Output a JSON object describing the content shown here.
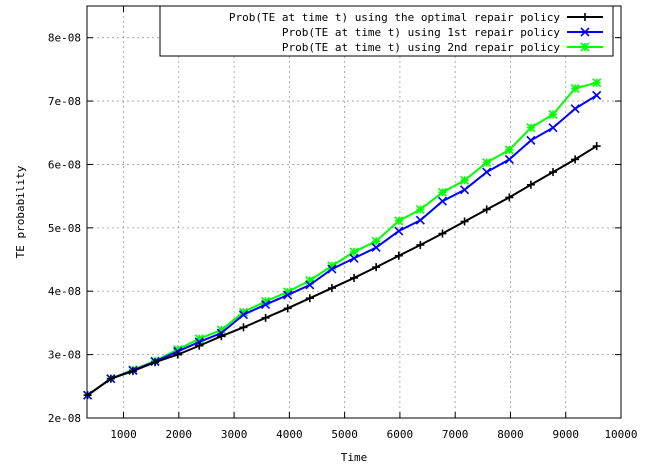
{
  "chart_data": {
    "type": "line",
    "title": "",
    "xlabel": "Time",
    "ylabel": "TE probability",
    "xlim": [
      339,
      10000
    ],
    "ylim": [
      2e-08,
      8.5e-08
    ],
    "grid": true,
    "legend_position": "top-right",
    "x_ticks": [
      1000,
      2000,
      3000,
      4000,
      5000,
      6000,
      7000,
      8000,
      9000,
      10000
    ],
    "x_tick_labels": [
      "1000",
      "2000",
      "3000",
      "4000",
      "5000",
      "6000",
      "7000",
      "8000",
      "9000",
      "10000"
    ],
    "y_ticks": [
      2e-08,
      3e-08,
      4e-08,
      5e-08,
      6e-08,
      7e-08,
      8e-08
    ],
    "y_tick_labels": [
      "2e-08",
      "3e-08",
      "4e-08",
      "5e-08",
      "6e-08",
      "7e-08",
      "8e-08"
    ],
    "x": [
      350,
      770,
      1170,
      1570,
      1980,
      2370,
      2770,
      3170,
      3570,
      3970,
      4370,
      4770,
      5170,
      5570,
      5980,
      6370,
      6770,
      7170,
      7570,
      7980,
      8370,
      8770,
      9170,
      9560
    ],
    "series": [
      {
        "name": "Prob(TE at time t) using the optimal repair policy",
        "color": "#000000",
        "marker": "plus",
        "values": [
          2.36e-08,
          2.62e-08,
          2.74e-08,
          2.88e-08,
          3e-08,
          3.14e-08,
          3.29e-08,
          3.43e-08,
          3.58e-08,
          3.73e-08,
          3.89e-08,
          4.05e-08,
          4.21e-08,
          4.38e-08,
          4.56e-08,
          4.73e-08,
          4.91e-08,
          5.1e-08,
          5.29e-08,
          5.48e-08,
          5.68e-08,
          5.88e-08,
          6.08e-08,
          6.29e-08
        ]
      },
      {
        "name": "Prob(TE at time t) using  1st repair policy",
        "color": "#0000ff",
        "marker": "cross",
        "values": [
          2.36e-08,
          2.62e-08,
          2.75e-08,
          2.89e-08,
          3.05e-08,
          3.2e-08,
          3.34e-08,
          3.63e-08,
          3.79e-08,
          3.94e-08,
          4.1e-08,
          4.35e-08,
          4.52e-08,
          4.69e-08,
          4.95e-08,
          5.12e-08,
          5.42e-08,
          5.6e-08,
          5.88e-08,
          6.08e-08,
          6.38e-08,
          6.58e-08,
          6.88e-08,
          7.09e-08
        ]
      },
      {
        "name": "Prob(TE at time t) using 2nd repair policy",
        "color": "#00ff00",
        "marker": "star",
        "values": [
          2.36e-08,
          2.62e-08,
          2.76e-08,
          2.9e-08,
          3.08e-08,
          3.25e-08,
          3.39e-08,
          3.67e-08,
          3.84e-08,
          3.99e-08,
          4.17e-08,
          4.4e-08,
          4.62e-08,
          4.79e-08,
          5.11e-08,
          5.29e-08,
          5.56e-08,
          5.75e-08,
          6.03e-08,
          6.23e-08,
          6.58e-08,
          6.79e-08,
          7.2e-08,
          7.29e-08
        ]
      }
    ]
  }
}
